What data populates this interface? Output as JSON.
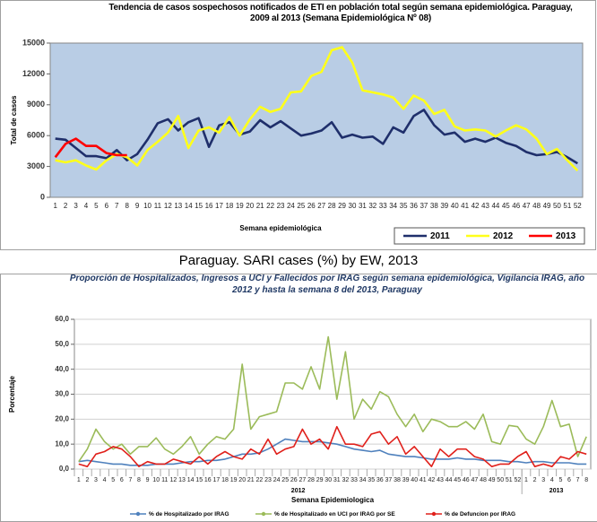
{
  "heading": "Paraguay. SARI cases (%)  by EW, 2013",
  "chart_data": [
    {
      "type": "line",
      "title": "Tendencia de casos sospechosos notificados de ETI en población total según semana epidemiológica. Paraguay, 2009 al 2013 (Semana Epidemiológica Nº 08)",
      "x_label": "Semana epidemiológica",
      "y_label": "Total de casos",
      "categories": [
        "1",
        "2",
        "3",
        "4",
        "5",
        "6",
        "7",
        "8",
        "9",
        "10",
        "11",
        "12",
        "13",
        "14",
        "15",
        "16",
        "17",
        "18",
        "19",
        "20",
        "21",
        "22",
        "23",
        "24",
        "25",
        "26",
        "27",
        "28",
        "29",
        "30",
        "31",
        "32",
        "33",
        "34",
        "35",
        "36",
        "37",
        "38",
        "39",
        "40",
        "41",
        "42",
        "43",
        "44",
        "45",
        "46",
        "47",
        "48",
        "49",
        "50",
        "51",
        "52"
      ],
      "series": [
        {
          "name": "2011",
          "color": "#1f2f6b",
          "values": [
            5700,
            5600,
            4800,
            4000,
            4000,
            3800,
            4600,
            3600,
            4200,
            5600,
            7200,
            7600,
            6500,
            7300,
            7700,
            4900,
            7000,
            7300,
            6100,
            6400,
            7500,
            6800,
            7400,
            6700,
            6000,
            6200,
            6500,
            7300,
            5800,
            6100,
            5800,
            5900,
            5200,
            6800,
            6300,
            7900,
            8500,
            7000,
            6100,
            6300,
            5400,
            5700,
            5400,
            5800,
            5300,
            5000,
            4400,
            4100,
            4200,
            4400,
            3900,
            3300
          ]
        },
        {
          "name": "2012",
          "color": "#ffff1a",
          "values": [
            3600,
            3400,
            3600,
            3100,
            2700,
            3600,
            4200,
            3900,
            3100,
            4600,
            5400,
            6300,
            7900,
            4800,
            6500,
            6800,
            6300,
            7800,
            6000,
            7600,
            8800,
            8300,
            8600,
            10200,
            10300,
            11800,
            12200,
            14300,
            14600,
            13100,
            10400,
            10200,
            10000,
            9700,
            8600,
            9900,
            9400,
            8100,
            8500,
            6900,
            6500,
            6600,
            6500,
            5900,
            6500,
            7000,
            6600,
            5700,
            4200,
            4700,
            3600,
            2600
          ]
        },
        {
          "name": "2013",
          "color": "#ff0000",
          "values": [
            3900,
            5200,
            5700,
            5000,
            5000,
            4300,
            4100,
            4100,
            null,
            null,
            null,
            null,
            null,
            null,
            null,
            null,
            null,
            null,
            null,
            null,
            null,
            null,
            null,
            null,
            null,
            null,
            null,
            null,
            null,
            null,
            null,
            null,
            null,
            null,
            null,
            null,
            null,
            null,
            null,
            null,
            null,
            null,
            null,
            null,
            null,
            null,
            null,
            null,
            null,
            null,
            null,
            null
          ]
        }
      ],
      "ylim": [
        0,
        15000
      ],
      "yticks": [
        0,
        3000,
        6000,
        9000,
        12000,
        15000
      ],
      "grid": false,
      "plot_background": "#b9cde5",
      "legend": "bottom-right"
    },
    {
      "type": "line",
      "title": "Proporción de Hospitalizados, Ingresos a UCI y Fallecidos por IRAG según semana epidemiológica, Vigilancia IRAG, año 2012 y hasta la semana 8 del 2013, Paraguay",
      "x_label": "Semana Epidemiologica",
      "y_label": "Porcentaje",
      "categories": [
        "1",
        "2",
        "3",
        "4",
        "5",
        "6",
        "7",
        "8",
        "9",
        "10",
        "11",
        "12",
        "13",
        "14",
        "15",
        "16",
        "17",
        "18",
        "19",
        "20",
        "21",
        "22",
        "23",
        "24",
        "25",
        "26",
        "27",
        "28",
        "29",
        "30",
        "31",
        "32",
        "33",
        "34",
        "35",
        "36",
        "37",
        "38",
        "39",
        "40",
        "41",
        "42",
        "43",
        "44",
        "45",
        "46",
        "47",
        "48",
        "49",
        "50",
        "51",
        "52",
        "1",
        "2",
        "3",
        "4",
        "5",
        "6",
        "7",
        "8"
      ],
      "groups": [
        "2012",
        "2013"
      ],
      "series": [
        {
          "name": "% de Hospitalizado por IRAG",
          "color": "#4f81bd",
          "values": [
            3,
            3.5,
            3,
            2.5,
            2,
            2,
            1.5,
            1.5,
            1.5,
            2,
            2,
            2,
            2.5,
            3,
            3,
            3.5,
            3.5,
            4,
            5,
            6,
            6,
            6.5,
            8,
            10,
            12,
            11.5,
            11,
            11,
            11,
            10.5,
            10,
            9,
            8,
            7.5,
            7,
            7.5,
            6,
            5.5,
            5,
            5,
            4.5,
            4,
            4,
            4,
            4.5,
            4,
            4,
            3.5,
            3.5,
            3.5,
            3,
            3,
            2.5,
            3,
            3,
            2.5,
            2.5,
            2.5,
            2,
            2
          ]
        },
        {
          "name": "% de Hospitalizado en UCI por IRAG por SE",
          "color": "#9bbb59",
          "values": [
            3,
            8,
            16,
            11,
            8,
            10,
            6,
            9,
            9,
            12.5,
            8,
            6,
            9,
            13,
            6,
            10,
            13,
            12,
            16,
            42,
            16,
            21,
            22,
            23,
            34.5,
            34.5,
            32,
            41,
            32,
            53,
            28,
            47,
            20,
            28,
            24,
            31,
            29,
            22,
            17,
            22,
            15,
            20,
            19,
            17,
            17,
            19,
            16,
            22,
            11,
            10,
            17.5,
            17,
            12,
            10,
            17,
            27.5,
            17,
            18,
            5,
            13
          ]
        },
        {
          "name": "% de Defuncion por IRAG",
          "color": "#e0201b",
          "values": [
            2,
            1,
            6,
            7,
            9,
            8,
            5,
            1,
            3,
            2,
            2,
            4,
            3,
            2,
            5,
            2,
            5,
            7,
            5,
            4,
            8,
            6,
            12,
            6,
            8,
            9,
            16,
            10,
            12,
            8,
            17,
            10,
            10,
            9,
            14,
            15,
            10,
            13,
            6,
            9,
            5,
            1,
            8,
            5,
            8,
            8,
            5,
            4,
            1,
            2,
            2,
            5,
            7,
            1,
            2,
            1,
            5,
            4,
            7,
            6
          ]
        }
      ],
      "ylim": [
        0,
        60
      ],
      "yticks": [
        {
          "value": 0,
          "label": "0,0"
        },
        {
          "value": 10,
          "label": "10,0"
        },
        {
          "value": 20,
          "label": "20,0"
        },
        {
          "value": 30,
          "label": "30,0"
        },
        {
          "value": 40,
          "label": "40,0"
        },
        {
          "value": 50,
          "label": "50,0"
        },
        {
          "value": 60,
          "label": "60,0"
        }
      ],
      "grid": true,
      "plot_background": "#ffffff",
      "legend": "bottom"
    }
  ]
}
